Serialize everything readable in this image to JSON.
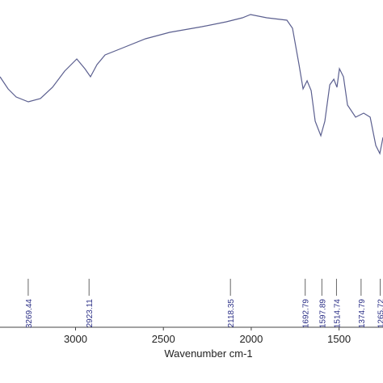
{
  "chart_data": {
    "type": "line",
    "x_label": "Wavenumber cm-1",
    "x": [
      3430,
      3384,
      3338,
      3269,
      3200,
      3131,
      3062,
      2993,
      2947,
      2915,
      2878,
      2832,
      2740,
      2602,
      2464,
      2280,
      2142,
      2050,
      2004,
      1912,
      1797,
      1765,
      1728,
      1705,
      1682,
      1659,
      1636,
      1604,
      1581,
      1553,
      1530,
      1512,
      1498,
      1475,
      1452,
      1406,
      1360,
      1323,
      1291,
      1268,
      1250
    ],
    "series": [
      {
        "color": "#5b5f8f",
        "values": [
          76.25,
          72.5,
          70,
          68.5,
          69.5,
          73,
          78,
          81.75,
          78.75,
          76.25,
          80,
          83,
          85,
          88,
          90,
          91.75,
          93.25,
          94.5,
          95.5,
          94.5,
          93.75,
          91.25,
          80,
          72.5,
          75,
          72,
          62.5,
          58,
          62.5,
          73.75,
          75.5,
          73,
          78.75,
          76.25,
          67.5,
          63.75,
          65,
          63.75,
          55,
          52.5,
          57.5
        ]
      }
    ],
    "xlim": [
      3430,
      1250
    ],
    "ylim": [
      0,
      100
    ],
    "xticks": [
      3500,
      3000,
      2500,
      2000,
      1500
    ],
    "peaks": [
      3269.44,
      2923.11,
      2118.35,
      1692.79,
      1597.89,
      1514.74,
      1374.79,
      1265.72
    ],
    "peak_color": "#2b2f86"
  }
}
